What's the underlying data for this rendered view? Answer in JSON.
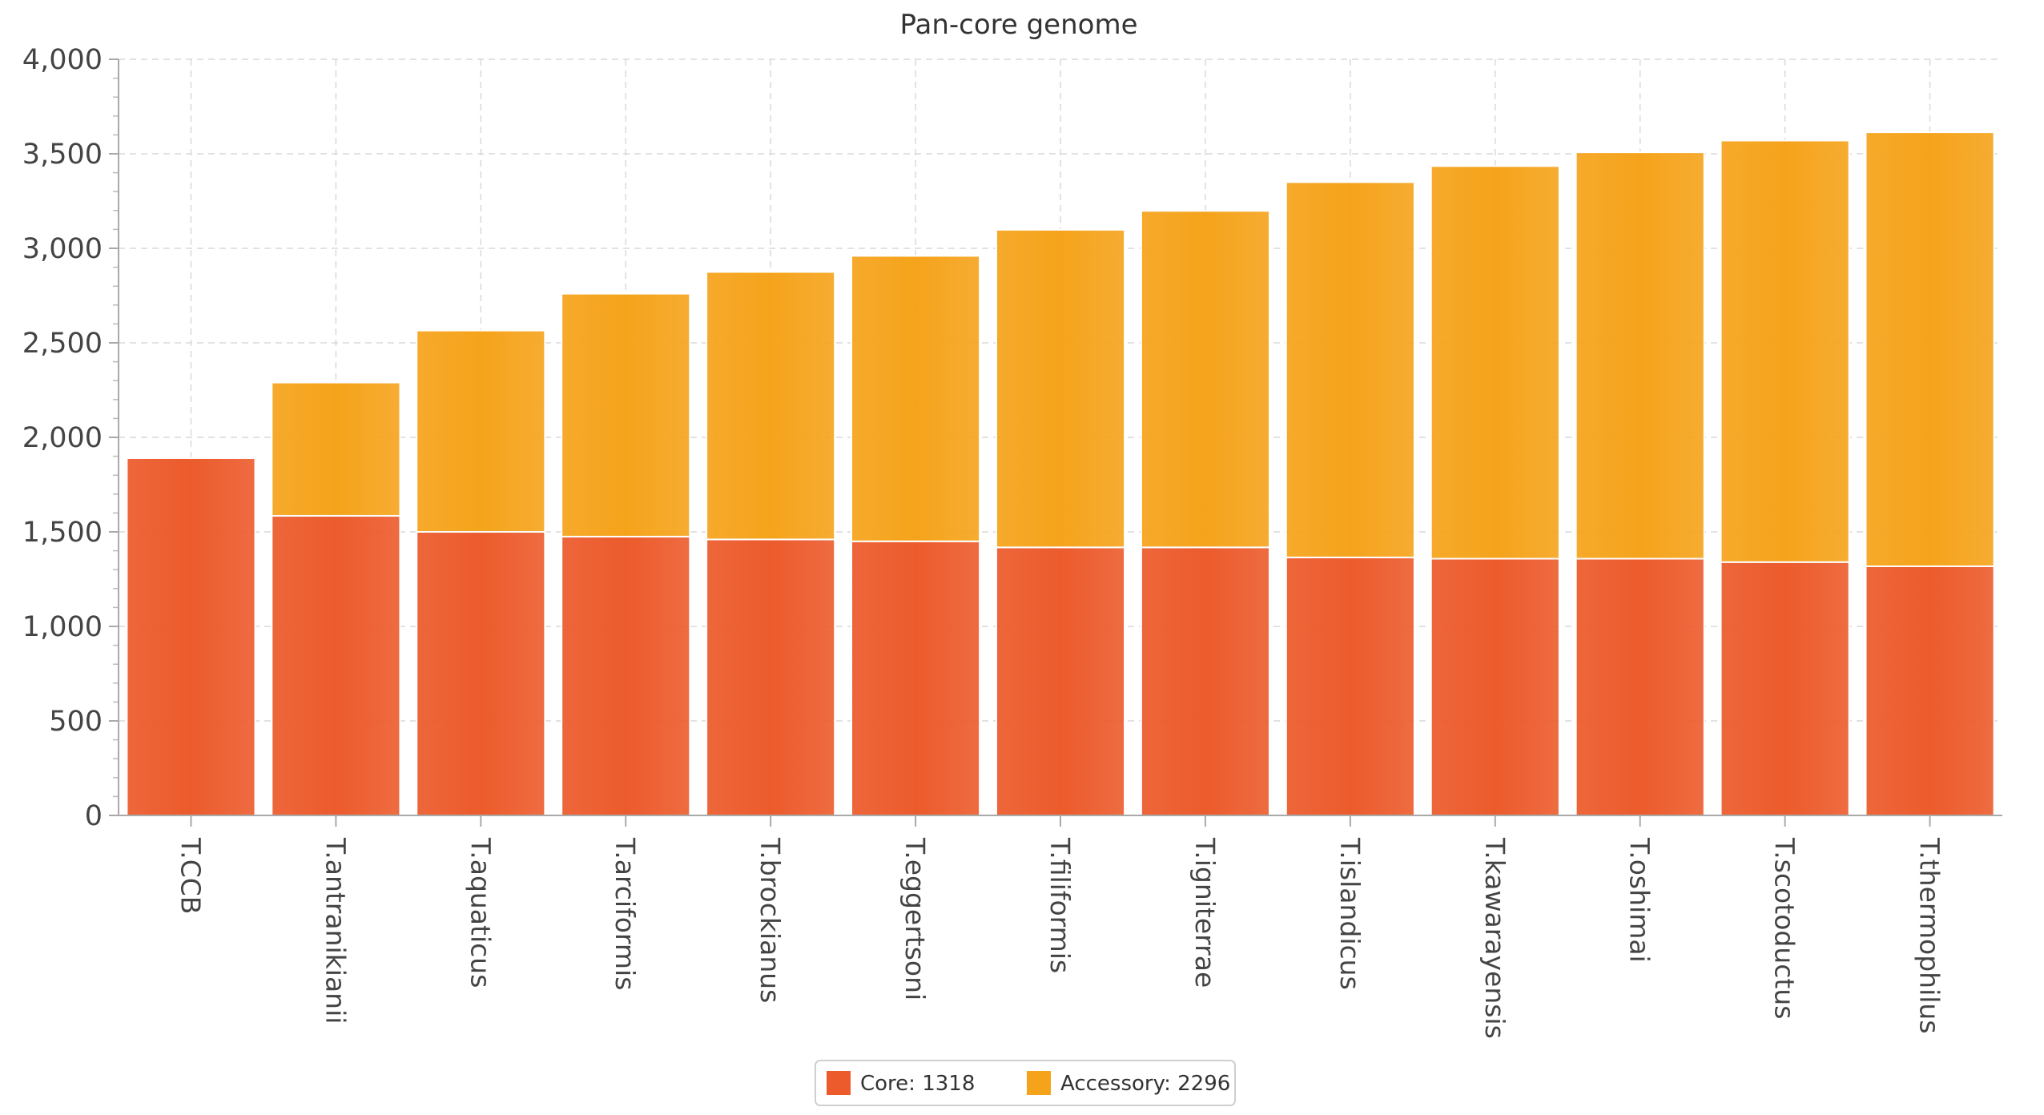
{
  "chart_data": {
    "type": "bar",
    "stacked": true,
    "title": "Pan-core genome",
    "xlabel": "",
    "ylabel": "",
    "ylim": [
      0,
      4000
    ],
    "y_ticks": [
      0,
      500,
      1000,
      1500,
      2000,
      2500,
      3000,
      3500,
      4000
    ],
    "y_tick_labels": [
      "0",
      "500",
      "1,000",
      "1,500",
      "2,000",
      "2,500",
      "3,000",
      "3,500",
      "4,000"
    ],
    "grid": true,
    "legend_position": "bottom-center",
    "categories": [
      "T.CCB",
      "T.antranikianii",
      "T.aquaticus",
      "T.arciformis",
      "T.brockianus",
      "T.eggertsoni",
      "T.filiformis",
      "T.igniterrae",
      "T.islandicus",
      "T.kawarayensis",
      "T.oshimai",
      "T.scotoductus",
      "T.thermophilus"
    ],
    "series": [
      {
        "name": "Core",
        "color": "#ec5b2c",
        "values": [
          1890,
          1585,
          1500,
          1475,
          1460,
          1450,
          1418,
          1418,
          1365,
          1358,
          1358,
          1340,
          1318
        ]
      },
      {
        "name": "Accessory",
        "color": "#f5a31b",
        "values": [
          0,
          705,
          1065,
          1285,
          1415,
          1510,
          1680,
          1780,
          1985,
          2077,
          2150,
          2230,
          2296
        ]
      }
    ],
    "legend": [
      {
        "label": "Core: 1318",
        "color": "#ec5b2c"
      },
      {
        "label": "Accessory: 2296",
        "color": "#f5a31b"
      }
    ]
  }
}
